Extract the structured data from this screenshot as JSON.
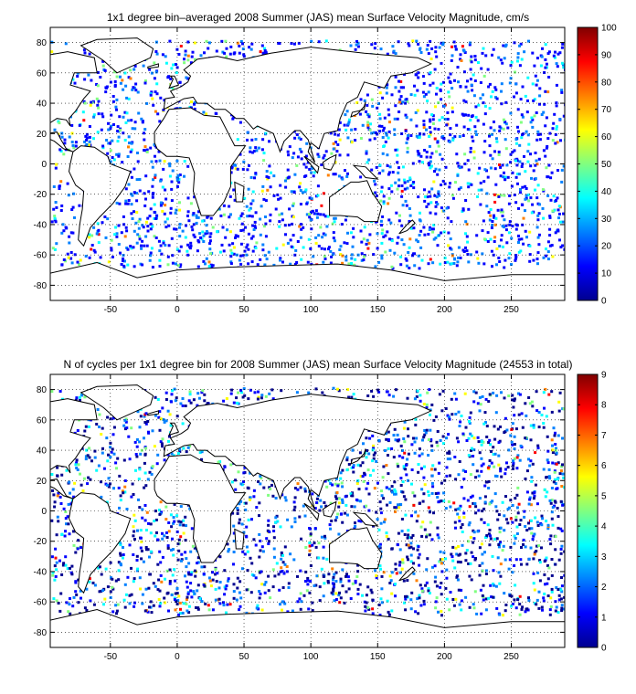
{
  "figure": {
    "panels": [
      {
        "title": "1x1 degree bin–averaged 2008 Summer (JAS) mean Surface Velocity Magnitude, cm/s",
        "colorbar": {
          "ticks": [
            "0",
            "10",
            "20",
            "30",
            "40",
            "50",
            "60",
            "70",
            "80",
            "90",
            "100"
          ],
          "min": 0,
          "max": 100
        }
      },
      {
        "title": "N of cycles per 1x1 degree bin for 2008 Summer (JAS) mean Surface Velocity Magnitude (24553 in total)",
        "colorbar": {
          "ticks": [
            "0",
            "1",
            "2",
            "3",
            "4",
            "5",
            "6",
            "7",
            "8",
            "9"
          ],
          "min": 0,
          "max": 9
        }
      }
    ],
    "x_ticks": [
      "-50",
      "0",
      "50",
      "100",
      "150",
      "200",
      "250"
    ],
    "y_ticks": [
      "80",
      "60",
      "40",
      "20",
      "0",
      "-20",
      "-40",
      "-60",
      "-80"
    ],
    "x_range": [
      -95,
      290
    ],
    "y_range": [
      -90,
      90
    ],
    "colormap": [
      "#00008f",
      "#0000ff",
      "#0080ff",
      "#00ffff",
      "#80ff80",
      "#ffff00",
      "#ff8000",
      "#ff0000",
      "#800000"
    ],
    "land_color": "#ffffff",
    "coastline_color": "#000000"
  }
}
